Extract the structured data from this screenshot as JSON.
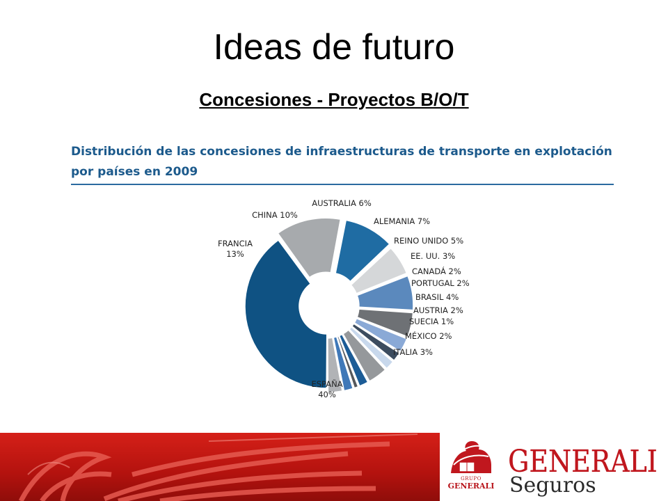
{
  "slide": {
    "title": "Ideas de futuro",
    "subtitle": "Concesiones - Proyectos B/O/T"
  },
  "chart_data": {
    "type": "pie",
    "donut": true,
    "title": "Distribución de las concesiones de infraestructuras de transporte en explotación por países en 2009",
    "slices": [
      {
        "name": "ESPAÑA",
        "label": "ESPAÑA",
        "pct_label": "40%",
        "value": 40,
        "color": "#0f5283"
      },
      {
        "name": "FRANCIA",
        "label": "FRANCIA",
        "pct_label": "13%",
        "value": 13,
        "color": "#a7aaad"
      },
      {
        "name": "CHINA",
        "label": "CHINA",
        "pct_label": "10%",
        "value": 10,
        "color": "#1f6ca3"
      },
      {
        "name": "AUSTRALIA",
        "label": "AUSTRALIA",
        "pct_label": "6%",
        "value": 6,
        "color": "#d5d7d9"
      },
      {
        "name": "ALEMANIA",
        "label": "ALEMANIA",
        "pct_label": "7%",
        "value": 7,
        "color": "#5b89bd"
      },
      {
        "name": "REINO UNIDO",
        "label": "REINO UNIDO",
        "pct_label": "5%",
        "value": 5,
        "color": "#6e7175"
      },
      {
        "name": "EE. UU.",
        "label": "EE. UU.",
        "pct_label": "3%",
        "value": 3,
        "color": "#8aa9d6"
      },
      {
        "name": "CANADÁ",
        "label": "CANADÁ",
        "pct_label": "2%",
        "value": 2,
        "color": "#3c4c5f"
      },
      {
        "name": "PORTUGAL",
        "label": "PORTUGAL",
        "pct_label": "2%",
        "value": 2,
        "color": "#c8d8ec"
      },
      {
        "name": "BRASIL",
        "label": "BRASIL",
        "pct_label": "4%",
        "value": 4,
        "color": "#95989b"
      },
      {
        "name": "AUSTRIA",
        "label": "AUSTRIA",
        "pct_label": "2%",
        "value": 2,
        "color": "#1c5c96"
      },
      {
        "name": "SUECIA",
        "label": "SUECIA",
        "pct_label": "1%",
        "value": 1,
        "color": "#55585c"
      },
      {
        "name": "MÉXICO",
        "label": "MÉXICO",
        "pct_label": "2%",
        "value": 2,
        "color": "#3f78b8"
      },
      {
        "name": "ITALIA",
        "label": "ITALIA",
        "pct_label": "3%",
        "value": 3,
        "color": "#b1b3b6"
      }
    ]
  },
  "footer": {
    "brand": "GENERALI",
    "brand_sub": "Seguros",
    "badge_top": "GRUPO",
    "badge_bottom": "GENERALI",
    "accent_color": "#c0171e"
  }
}
